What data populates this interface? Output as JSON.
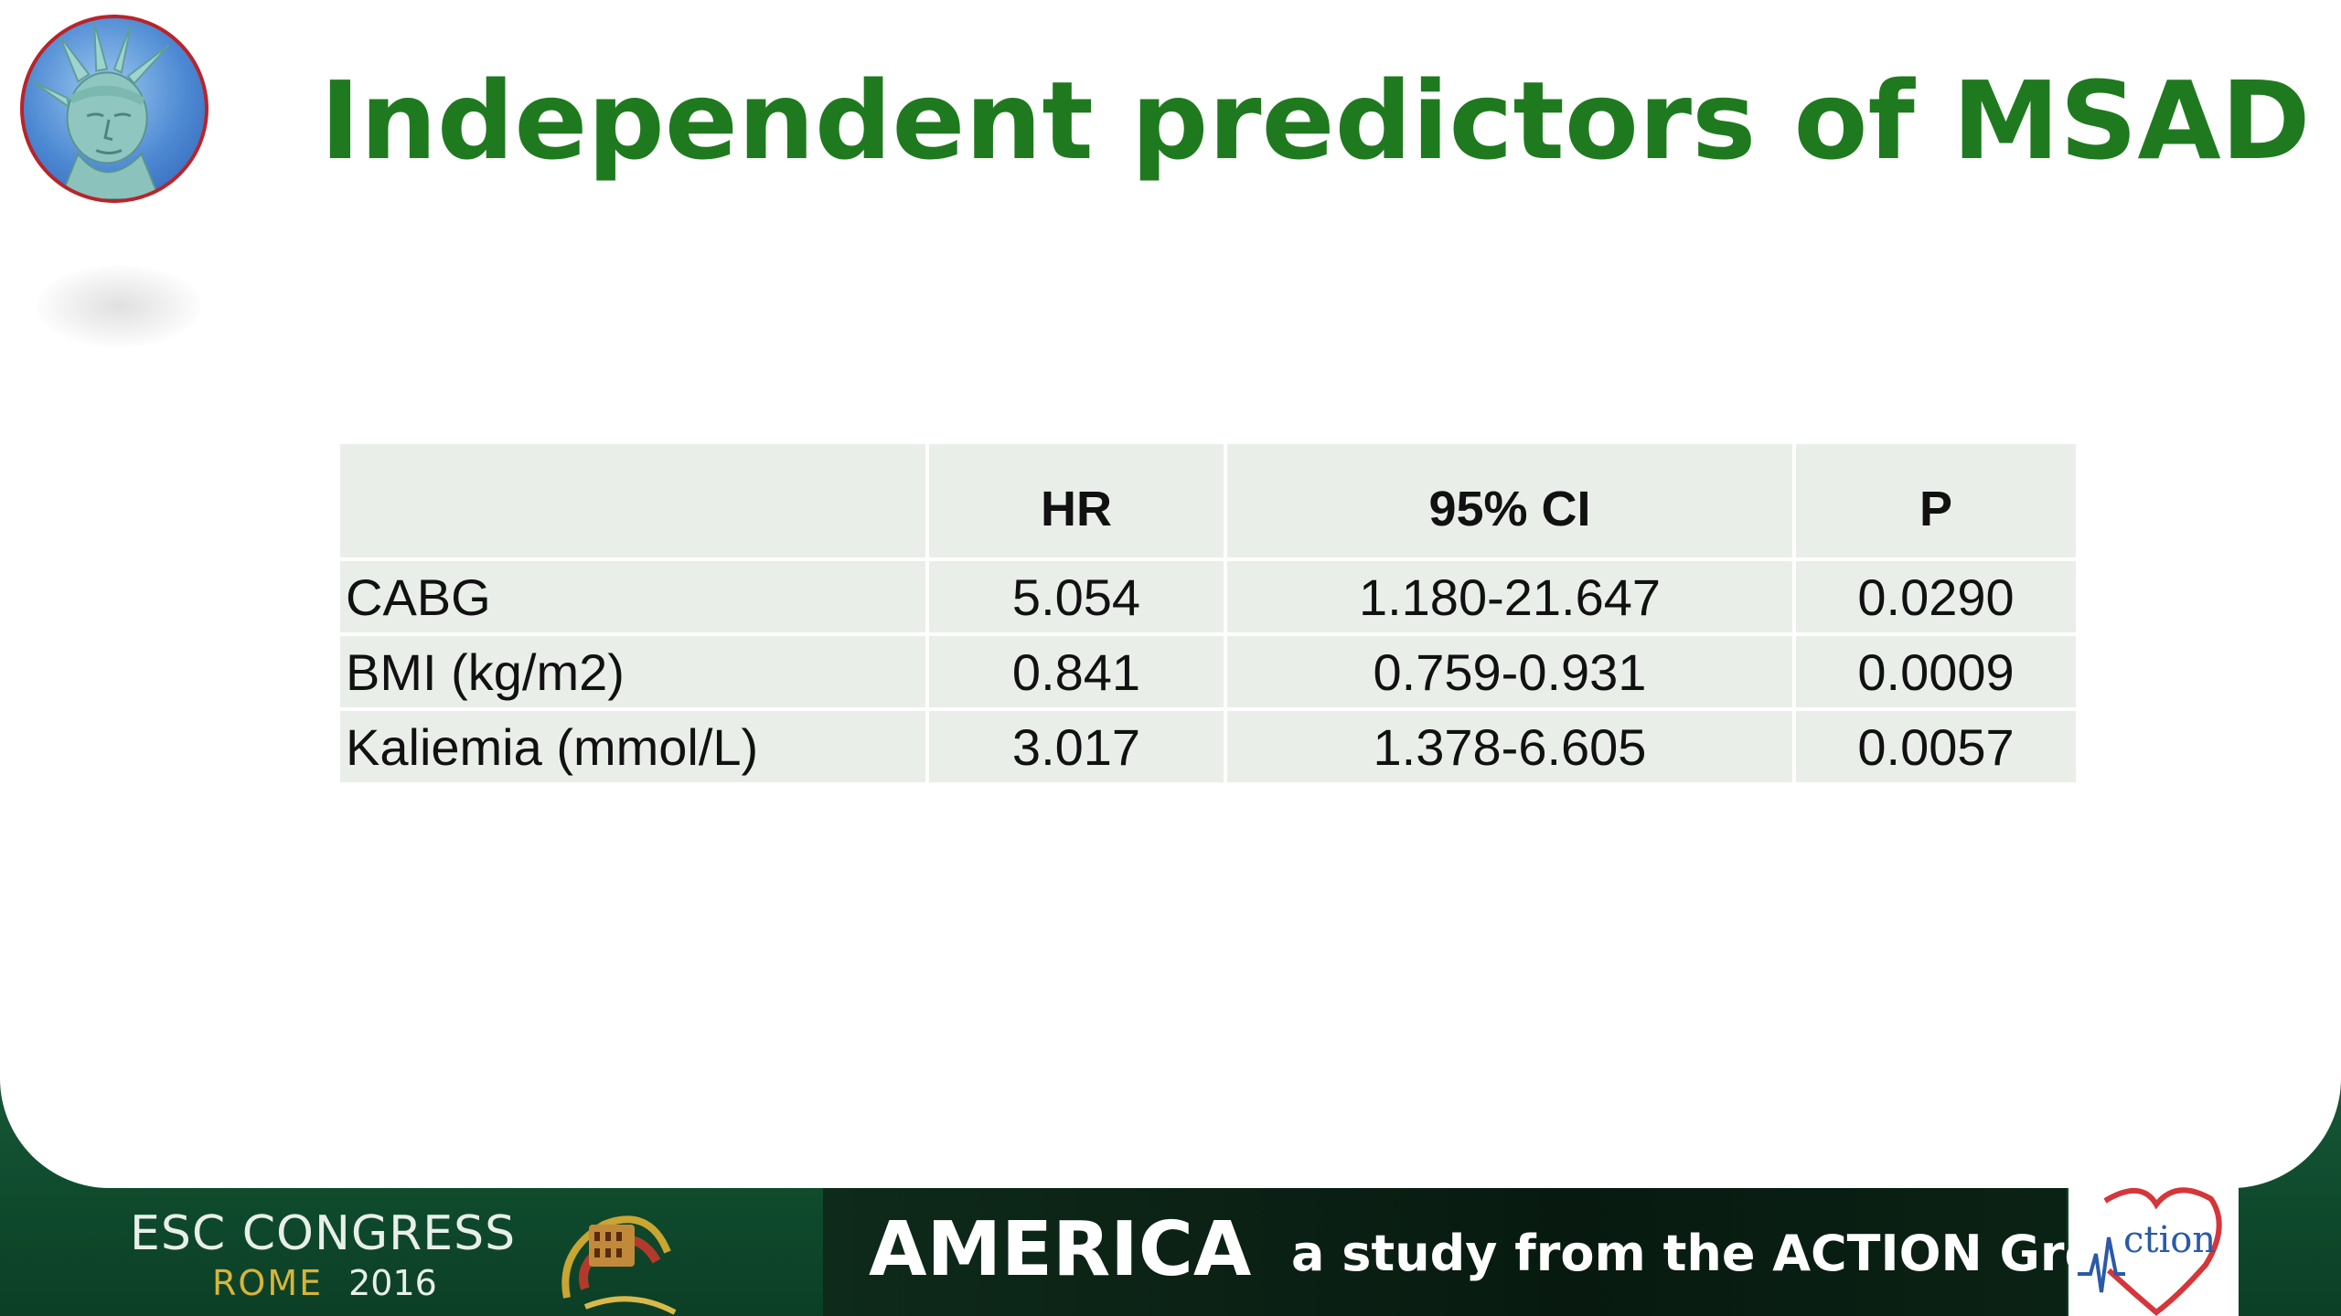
{
  "slide": {
    "title": "Independent predictors of MSAD"
  },
  "table": {
    "headers": [
      "",
      "HR",
      "95% CI",
      "P"
    ],
    "rows": [
      {
        "label": "CABG",
        "hr": "5.054",
        "ci": "1.180-21.647",
        "p": "0.0290"
      },
      {
        "label": "BMI (kg/m2)",
        "hr": "0.841",
        "ci": "0.759-0.931",
        "p": "0.0009"
      },
      {
        "label": "Kaliemia  (mmol/L)",
        "hr": "3.017",
        "ci": "1.378-6.605",
        "p": "0.0057"
      }
    ]
  },
  "footer": {
    "congress": "ESC CONGRESS",
    "city": "ROME",
    "year": "2016",
    "study_name": "AMERICA",
    "tagline": "a study from the ACTION Group",
    "logo_text": "ction"
  },
  "colors": {
    "title_green": "#1f7a1f",
    "table_cell": "#e9eee9",
    "footer_green": "#0f4a2d",
    "emblem_border": "#b9242a",
    "logo_blue": "#2a5aa8",
    "logo_red": "#d6353a"
  },
  "icons": {
    "emblem": "statue-of-liberty-icon",
    "coliseum": "coliseum-icon",
    "logo": "action-heart-logo"
  }
}
